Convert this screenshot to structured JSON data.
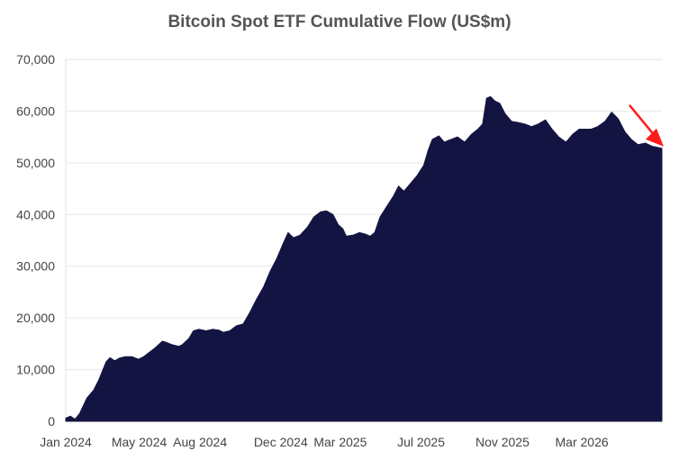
{
  "chart_data": {
    "type": "area",
    "title": "Bitcoin Spot ETF Cumulative Flow (US$m)",
    "xlabel": "",
    "ylabel": "",
    "ylim": [
      0,
      70000
    ],
    "xlim": [
      "2024-01-11",
      "2026-06-30"
    ],
    "grid": true,
    "legend": "none",
    "fill_color": "#141443",
    "arrow_color": "#ff1a1a",
    "y_ticks": [
      {
        "value": 0,
        "label": "0"
      },
      {
        "value": 10000,
        "label": "10,000"
      },
      {
        "value": 20000,
        "label": "20,000"
      },
      {
        "value": 30000,
        "label": "30,000"
      },
      {
        "value": 40000,
        "label": "40,000"
      },
      {
        "value": 50000,
        "label": "50,000"
      },
      {
        "value": 60000,
        "label": "60,000"
      },
      {
        "value": 70000,
        "label": "70,000"
      }
    ],
    "x_ticks": [
      {
        "date": "2024-01-01",
        "label": "Jan 2024"
      },
      {
        "date": "2024-05-01",
        "label": "May 2024"
      },
      {
        "date": "2024-08-01",
        "label": "Aug 2024"
      },
      {
        "date": "2024-12-01",
        "label": "Dec 2024"
      },
      {
        "date": "2025-03-01",
        "label": "Mar 2025"
      },
      {
        "date": "2025-07-01",
        "label": "Jul 2025"
      },
      {
        "date": "2025-11-01",
        "label": "Nov 2025"
      },
      {
        "date": "2026-03-01",
        "label": "Mar 2026"
      }
    ],
    "series": [
      {
        "points": [
          [
            "2024-01-11",
            600
          ],
          [
            "2024-01-18",
            1000
          ],
          [
            "2024-01-25",
            400
          ],
          [
            "2024-02-01",
            1500
          ],
          [
            "2024-02-12",
            4500
          ],
          [
            "2024-02-22",
            6000
          ],
          [
            "2024-03-01",
            8000
          ],
          [
            "2024-03-12",
            11500
          ],
          [
            "2024-03-18",
            12300
          ],
          [
            "2024-03-25",
            11700
          ],
          [
            "2024-04-01",
            12200
          ],
          [
            "2024-04-10",
            12500
          ],
          [
            "2024-04-20",
            12500
          ],
          [
            "2024-04-30",
            12000
          ],
          [
            "2024-05-08",
            12500
          ],
          [
            "2024-05-15",
            13200
          ],
          [
            "2024-05-25",
            14200
          ],
          [
            "2024-06-05",
            15500
          ],
          [
            "2024-06-10",
            15300
          ],
          [
            "2024-06-20",
            14800
          ],
          [
            "2024-06-30",
            14500
          ],
          [
            "2024-07-05",
            14800
          ],
          [
            "2024-07-15",
            16000
          ],
          [
            "2024-07-22",
            17500
          ],
          [
            "2024-07-30",
            17800
          ],
          [
            "2024-08-10",
            17500
          ],
          [
            "2024-08-20",
            17800
          ],
          [
            "2024-08-30",
            17600
          ],
          [
            "2024-09-05",
            17200
          ],
          [
            "2024-09-15",
            17500
          ],
          [
            "2024-09-25",
            18500
          ],
          [
            "2024-10-05",
            18800
          ],
          [
            "2024-10-15",
            21000
          ],
          [
            "2024-10-25",
            23500
          ],
          [
            "2024-11-05",
            26000
          ],
          [
            "2024-11-15",
            29000
          ],
          [
            "2024-11-25",
            31500
          ],
          [
            "2024-12-05",
            34500
          ],
          [
            "2024-12-12",
            36500
          ],
          [
            "2024-12-20",
            35500
          ],
          [
            "2024-12-30",
            36000
          ],
          [
            "2025-01-10",
            37500
          ],
          [
            "2025-01-20",
            39500
          ],
          [
            "2025-01-30",
            40500
          ],
          [
            "2025-02-08",
            40700
          ],
          [
            "2025-02-18",
            40000
          ],
          [
            "2025-02-26",
            38000
          ],
          [
            "2025-03-05",
            37200
          ],
          [
            "2025-03-10",
            35800
          ],
          [
            "2025-03-20",
            36000
          ],
          [
            "2025-03-30",
            36500
          ],
          [
            "2025-04-08",
            36200
          ],
          [
            "2025-04-15",
            35800
          ],
          [
            "2025-04-22",
            36500
          ],
          [
            "2025-04-30",
            39500
          ],
          [
            "2025-05-10",
            41500
          ],
          [
            "2025-05-20",
            43500
          ],
          [
            "2025-05-28",
            45500
          ],
          [
            "2025-06-05",
            44500
          ],
          [
            "2025-06-15",
            46000
          ],
          [
            "2025-06-25",
            47500
          ],
          [
            "2025-07-05",
            49500
          ],
          [
            "2025-07-12",
            52500
          ],
          [
            "2025-07-18",
            54500
          ],
          [
            "2025-07-28",
            55200
          ],
          [
            "2025-08-05",
            54000
          ],
          [
            "2025-08-15",
            54500
          ],
          [
            "2025-08-25",
            55000
          ],
          [
            "2025-09-05",
            54000
          ],
          [
            "2025-09-15",
            55500
          ],
          [
            "2025-09-25",
            56500
          ],
          [
            "2025-10-02",
            57500
          ],
          [
            "2025-10-08",
            62500
          ],
          [
            "2025-10-14",
            62800
          ],
          [
            "2025-10-20",
            62000
          ],
          [
            "2025-10-28",
            61500
          ],
          [
            "2025-11-05",
            59500
          ],
          [
            "2025-11-15",
            58000
          ],
          [
            "2025-11-25",
            57800
          ],
          [
            "2025-12-05",
            57500
          ],
          [
            "2025-12-15",
            57000
          ],
          [
            "2025-12-25",
            57500
          ],
          [
            "2026-01-05",
            58300
          ],
          [
            "2026-01-15",
            56500
          ],
          [
            "2026-01-25",
            55000
          ],
          [
            "2026-02-05",
            54000
          ],
          [
            "2026-02-15",
            55500
          ],
          [
            "2026-02-25",
            56500
          ],
          [
            "2026-03-05",
            56500
          ],
          [
            "2026-03-15",
            56500
          ],
          [
            "2026-03-25",
            57000
          ],
          [
            "2026-04-05",
            58000
          ],
          [
            "2026-04-15",
            59800
          ],
          [
            "2026-04-25",
            58500
          ],
          [
            "2026-05-05",
            56000
          ],
          [
            "2026-05-15",
            54500
          ],
          [
            "2026-05-25",
            53500
          ],
          [
            "2026-06-05",
            53800
          ],
          [
            "2026-06-15",
            53200
          ],
          [
            "2026-06-30",
            52800
          ]
        ]
      }
    ]
  }
}
